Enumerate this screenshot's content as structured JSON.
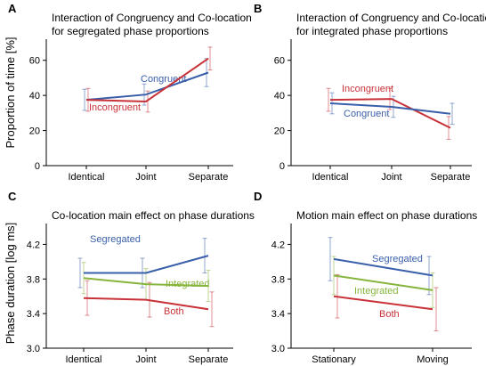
{
  "figure": {
    "ylabel_top": "Proportion of time [%]",
    "ylabel_bottom": "Phase duration [log ms]"
  },
  "colors": {
    "blue": "#3a5faa",
    "red": "#c83238",
    "green": "#86b43c"
  },
  "chart_data": [
    {
      "panel": "A",
      "type": "line",
      "title": [
        "Interaction of Congruency and Co-location",
        "for segregated phase proportions"
      ],
      "categories": [
        "Identical",
        "Joint",
        "Separate"
      ],
      "yticks": [
        "0",
        "20",
        "40",
        "60"
      ],
      "ylim": [
        0,
        70
      ],
      "series": [
        {
          "name": "Congruent",
          "color": "#3a5faa",
          "values": [
            37.5,
            40.5,
            53
          ],
          "err": [
            6,
            6,
            8
          ]
        },
        {
          "name": "Incongruent",
          "color": "#c83238",
          "values": [
            37.5,
            36.5,
            61
          ],
          "err": [
            6.5,
            6,
            6.5
          ]
        }
      ]
    },
    {
      "panel": "B",
      "type": "line",
      "title": [
        "Interaction of Congruency and Co-location",
        "for integrated phase proportions"
      ],
      "categories": [
        "Identical",
        "Joint",
        "Separate"
      ],
      "yticks": [
        "0",
        "20",
        "40",
        "60"
      ],
      "ylim": [
        0,
        70
      ],
      "series": [
        {
          "name": "Incongruent",
          "color": "#c83238",
          "values": [
            37.5,
            38,
            21.5
          ],
          "err": [
            6.5,
            6,
            6.5
          ]
        },
        {
          "name": "Congruent",
          "color": "#3a5faa",
          "values": [
            35.5,
            33.5,
            29.5
          ],
          "err": [
            6,
            6,
            6
          ]
        }
      ]
    },
    {
      "panel": "C",
      "type": "line",
      "title": [
        "Co-location main effect on phase durations"
      ],
      "categories": [
        "Identical",
        "Joint",
        "Separate"
      ],
      "yticks": [
        "3.0",
        "3.4",
        "3.8",
        "4.2"
      ],
      "ylim": [
        3.0,
        4.4
      ],
      "series": [
        {
          "name": "Segregated",
          "color": "#3a5faa",
          "values": [
            3.87,
            3.87,
            4.07
          ],
          "err": [
            0.17,
            0.17,
            0.2
          ]
        },
        {
          "name": "Integrated",
          "color": "#86b43c",
          "values": [
            3.81,
            3.74,
            3.72
          ],
          "err": [
            0.18,
            0.18,
            0.18
          ]
        },
        {
          "name": "Both",
          "color": "#c83238",
          "values": [
            3.58,
            3.56,
            3.45
          ],
          "err": [
            0.2,
            0.2,
            0.2
          ]
        }
      ]
    },
    {
      "panel": "D",
      "type": "line",
      "title": [
        "Motion main effect on phase durations"
      ],
      "categories": [
        "Stationary",
        "Moving"
      ],
      "yticks": [
        "3.0",
        "3.4",
        "3.8",
        "4.2"
      ],
      "ylim": [
        3.0,
        4.4
      ],
      "series": [
        {
          "name": "Segregated",
          "color": "#3a5faa",
          "values": [
            4.03,
            3.84
          ],
          "err": [
            0.25,
            0.22
          ]
        },
        {
          "name": "Integrated",
          "color": "#86b43c",
          "values": [
            3.84,
            3.67
          ],
          "err": [
            0.22,
            0.2
          ]
        },
        {
          "name": "Both",
          "color": "#c83238",
          "values": [
            3.6,
            3.45
          ],
          "err": [
            0.25,
            0.25
          ]
        }
      ]
    }
  ]
}
